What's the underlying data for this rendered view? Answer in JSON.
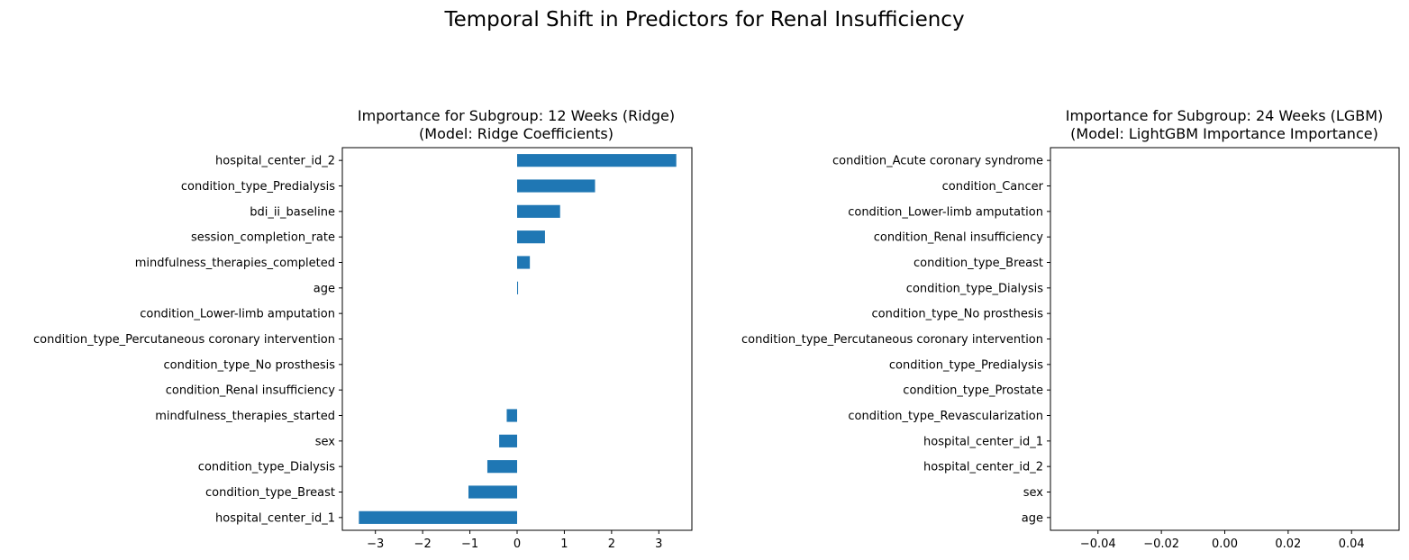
{
  "figure": {
    "suptitle": "Temporal Shift in Predictors for Renal Insufficiency"
  },
  "chart_data": [
    {
      "type": "bar",
      "orientation": "horizontal",
      "title": "Importance for Subgroup: 12 Weeks (Ridge)",
      "subtitle": "(Model: Ridge Coefficients)",
      "xlabel": "",
      "ylabel": "",
      "xlim": [
        -3.7,
        3.7
      ],
      "xticks": [
        -3,
        -2,
        -1,
        0,
        1,
        2,
        3
      ],
      "xtick_labels": [
        "−3",
        "−2",
        "−1",
        "0",
        "1",
        "2",
        "3"
      ],
      "bar_color": "#1f77b4",
      "grid": false,
      "categories": [
        "hospital_center_id_2",
        "condition_type_Predialysis",
        "bdi_ii_baseline",
        "session_completion_rate",
        "mindfulness_therapies_completed",
        "age",
        "condition_Lower-limb amputation",
        "condition_type_Percutaneous coronary intervention",
        "condition_type_No prosthesis",
        "condition_Renal insufficiency",
        "mindfulness_therapies_started",
        "sex",
        "condition_type_Dialysis",
        "condition_type_Breast",
        "hospital_center_id_1"
      ],
      "values": [
        3.37,
        1.65,
        0.91,
        0.59,
        0.27,
        0.02,
        0,
        0,
        0,
        0,
        -0.22,
        -0.38,
        -0.63,
        -1.03,
        -3.35
      ]
    },
    {
      "type": "bar",
      "orientation": "horizontal",
      "title": "Importance for Subgroup: 24 Weeks (LGBM)",
      "subtitle": "(Model: LightGBM Importance Importance)",
      "xlabel": "",
      "ylabel": "",
      "xlim": [
        -0.055,
        0.055
      ],
      "xticks": [
        -0.04,
        -0.02,
        0,
        0.02,
        0.04
      ],
      "xtick_labels": [
        "−0.04",
        "−0.02",
        "0.00",
        "0.02",
        "0.04"
      ],
      "bar_color": "#1f77b4",
      "grid": false,
      "categories": [
        "condition_Acute coronary syndrome",
        "condition_Cancer",
        "condition_Lower-limb amputation",
        "condition_Renal insufficiency",
        "condition_type_Breast",
        "condition_type_Dialysis",
        "condition_type_No prosthesis",
        "condition_type_Percutaneous coronary intervention",
        "condition_type_Predialysis",
        "condition_type_Prostate",
        "condition_type_Revascularization",
        "hospital_center_id_1",
        "hospital_center_id_2",
        "sex",
        "age"
      ],
      "values": [
        0,
        0,
        0,
        0,
        0,
        0,
        0,
        0,
        0,
        0,
        0,
        0,
        0,
        0,
        0
      ]
    }
  ]
}
